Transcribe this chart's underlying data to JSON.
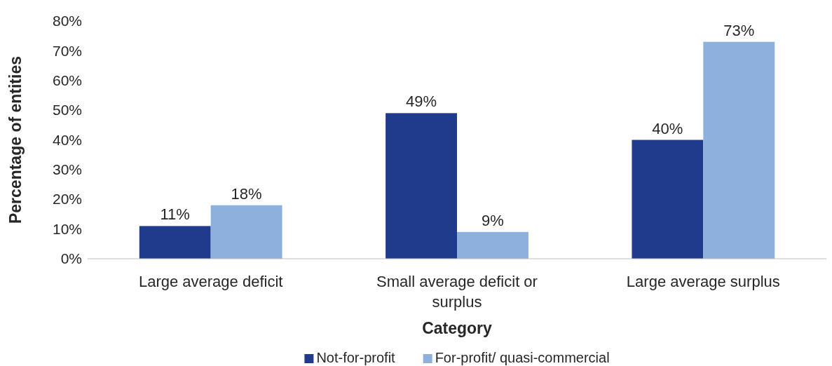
{
  "chart_data": {
    "type": "bar",
    "xlabel": "Category",
    "ylabel": "Percentage of entities",
    "categories": [
      "Large average deficit",
      "Small average deficit or surplus",
      "Large average surplus"
    ],
    "series": [
      {
        "name": "Not-for-profit",
        "color": "#213b8c",
        "values": [
          11,
          49,
          40
        ],
        "value_labels": [
          "11%",
          "49%",
          "40%"
        ]
      },
      {
        "name": "For-profit/ quasi-commercial",
        "color": "#8db0dc",
        "values": [
          18,
          9,
          73
        ],
        "value_labels": [
          "18%",
          "9%",
          "73%"
        ]
      }
    ],
    "ylim": [
      0,
      80
    ],
    "yticks": [
      {
        "value": 0,
        "label": "0%"
      },
      {
        "value": 10,
        "label": "10%"
      },
      {
        "value": 20,
        "label": "20%"
      },
      {
        "value": 30,
        "label": "30%"
      },
      {
        "value": 40,
        "label": "40%"
      },
      {
        "value": 50,
        "label": "50%"
      },
      {
        "value": 60,
        "label": "60%"
      },
      {
        "value": 70,
        "label": "70%"
      },
      {
        "value": 80,
        "label": "80%"
      }
    ],
    "legend": "bottom"
  }
}
